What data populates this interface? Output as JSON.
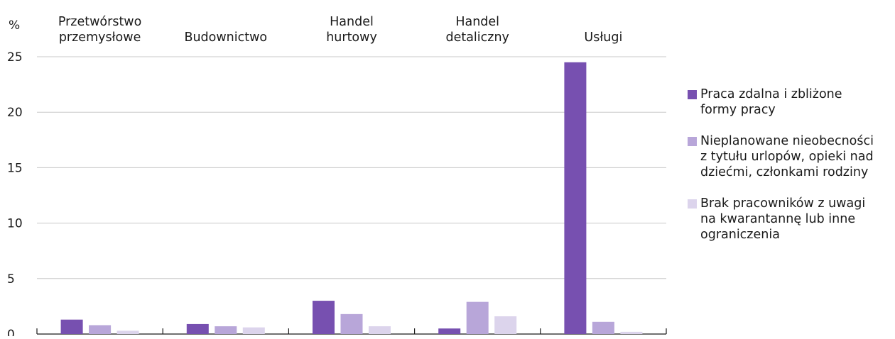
{
  "chart_data": {
    "type": "bar",
    "ylabel": "%",
    "ylim": [
      0,
      25
    ],
    "yticks": [
      "0",
      "5",
      "10",
      "15",
      "20",
      "25"
    ],
    "grid": true,
    "legend_position": "right",
    "categories": [
      [
        "Przetwórstwo",
        "przemysłowe"
      ],
      [
        "Budownictwo"
      ],
      [
        "Handel",
        "hurtowy"
      ],
      [
        "Handel",
        "detaliczny"
      ],
      [
        "Usługi"
      ]
    ],
    "series": [
      {
        "name": "Praca zdalna i zbliżone formy pracy",
        "name_lines": [
          "Praca zdalna i zbliżone",
          "formy pracy"
        ],
        "color": "#7750b0",
        "values": [
          1.3,
          0.9,
          3.0,
          0.5,
          24.5
        ]
      },
      {
        "name": "Nieplanowane nieobecności z tytułu urlopów, opieki nad dziećmi, członkami rodziny",
        "name_lines": [
          "Nieplanowane nieobecności",
          "z tytułu urlopów, opieki nad",
          "dziećmi, członkami rodziny"
        ],
        "color": "#b8a6d9",
        "values": [
          0.8,
          0.7,
          1.8,
          2.9,
          1.1
        ]
      },
      {
        "name": "Brak pracowników z uwagi na kwarantannę lub inne ograniczenia",
        "name_lines": [
          "Brak pracowników z uwagi",
          "na kwarantannę lub inne",
          "ograniczenia"
        ],
        "color": "#dcd4ec",
        "values": [
          0.3,
          0.6,
          0.7,
          1.6,
          0.2
        ]
      }
    ]
  }
}
